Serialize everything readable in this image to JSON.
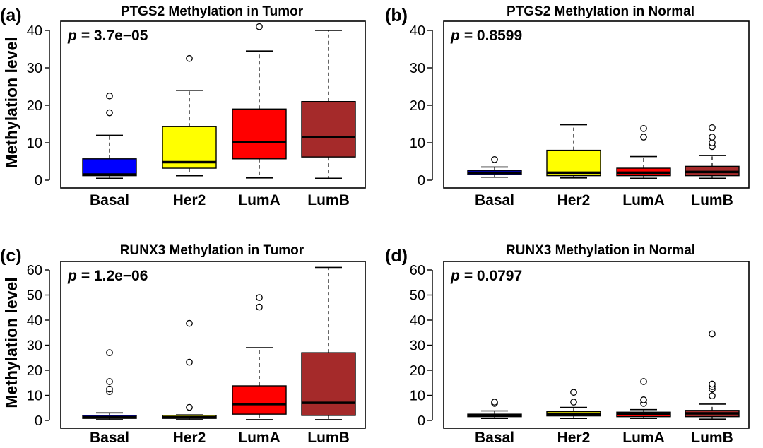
{
  "figure": {
    "ylabel": "Methylation level"
  },
  "chart_data": [
    {
      "type": "boxplot",
      "panel_label": "(a)",
      "title": "PTGS2 Methylation in Tumor",
      "p_symbol": "p",
      "p_value": "= 3.7e−05",
      "ylabel": "Methylation level",
      "ylim": [
        0,
        40
      ],
      "yticks": [
        "0",
        "10",
        "20",
        "30",
        "40"
      ],
      "categories": [
        "Basal",
        "Her2",
        "LumA",
        "LumB"
      ],
      "colors": [
        "#0000ff",
        "#ffff00",
        "#ff0000",
        "#a52a2a"
      ],
      "boxes": [
        {
          "q1": 1.2,
          "median": 1.5,
          "q3": 5.7,
          "whisker_low": 0.5,
          "whisker_high": 12,
          "outliers": [
            18,
            22.5
          ]
        },
        {
          "q1": 3.2,
          "median": 4.8,
          "q3": 14.3,
          "whisker_low": 1.2,
          "whisker_high": 24,
          "outliers": [
            32.5
          ]
        },
        {
          "q1": 5.7,
          "median": 10.2,
          "q3": 19,
          "whisker_low": 0.6,
          "whisker_high": 34.5,
          "outliers": [
            41
          ]
        },
        {
          "q1": 6.2,
          "median": 11.5,
          "q3": 21,
          "whisker_low": 0.5,
          "whisker_high": 40,
          "outliers": []
        }
      ]
    },
    {
      "type": "boxplot",
      "panel_label": "(b)",
      "title": "PTGS2 Methylation in Normal",
      "p_symbol": "p",
      "p_value": "= 0.8599",
      "ylabel": "",
      "ylim": [
        0,
        40
      ],
      "yticks": [
        "0",
        "10",
        "20",
        "30",
        "40"
      ],
      "categories": [
        "Basal",
        "Her2",
        "LumA",
        "LumB"
      ],
      "colors": [
        "#0000ff",
        "#ffff00",
        "#ff0000",
        "#a52a2a"
      ],
      "boxes": [
        {
          "q1": 1.5,
          "median": 2.0,
          "q3": 2.6,
          "whisker_low": 0.8,
          "whisker_high": 3.5,
          "outliers": [
            5.5
          ]
        },
        {
          "q1": 1.2,
          "median": 2.0,
          "q3": 8.0,
          "whisker_low": 0.6,
          "whisker_high": 14.8,
          "outliers": []
        },
        {
          "q1": 1.2,
          "median": 2.0,
          "q3": 3.2,
          "whisker_low": 0.5,
          "whisker_high": 6.3,
          "outliers": [
            11.5,
            13.8
          ]
        },
        {
          "q1": 1.2,
          "median": 2.2,
          "q3": 3.7,
          "whisker_low": 0.5,
          "whisker_high": 6.6,
          "outliers": [
            9,
            10,
            11.5,
            14
          ]
        }
      ]
    },
    {
      "type": "boxplot",
      "panel_label": "(c)",
      "title": "RUNX3 Methylation in Tumor",
      "p_symbol": "p",
      "p_value": "= 1.2e−06",
      "ylabel": "Methylation level",
      "ylim": [
        0,
        60
      ],
      "yticks": [
        "0",
        "10",
        "20",
        "30",
        "40",
        "50",
        "60"
      ],
      "categories": [
        "Basal",
        "Her2",
        "LumA",
        "LumB"
      ],
      "colors": [
        "#0000ff",
        "#ffff00",
        "#ff0000",
        "#a52a2a"
      ],
      "boxes": [
        {
          "q1": 0.8,
          "median": 1.2,
          "q3": 2.0,
          "whisker_low": 0.3,
          "whisker_high": 3.0,
          "outliers": [
            11.5,
            12.5,
            15.5,
            27
          ]
        },
        {
          "q1": 0.8,
          "median": 1.2,
          "q3": 2.0,
          "whisker_low": 0.3,
          "whisker_high": 2.2,
          "outliers": [
            5.2,
            23.2,
            38.7
          ]
        },
        {
          "q1": 2.5,
          "median": 6.5,
          "q3": 13.8,
          "whisker_low": 0.3,
          "whisker_high": 29,
          "outliers": [
            45.2,
            49
          ]
        },
        {
          "q1": 2.0,
          "median": 7.0,
          "q3": 27,
          "whisker_low": 0.3,
          "whisker_high": 61,
          "outliers": []
        }
      ]
    },
    {
      "type": "boxplot",
      "panel_label": "(d)",
      "title": "RUNX3 Methylation in Normal",
      "p_symbol": "p",
      "p_value": "= 0.0797",
      "ylabel": "",
      "ylim": [
        0,
        60
      ],
      "yticks": [
        "0",
        "10",
        "20",
        "30",
        "40",
        "50",
        "60"
      ],
      "categories": [
        "Basal",
        "Her2",
        "LumA",
        "LumB"
      ],
      "colors": [
        "#0000ff",
        "#ffff00",
        "#ff0000",
        "#a52a2a"
      ],
      "boxes": [
        {
          "q1": 1.5,
          "median": 2.0,
          "q3": 2.5,
          "whisker_low": 0.8,
          "whisker_high": 3.8,
          "outliers": [
            6.8,
            7.3
          ]
        },
        {
          "q1": 1.8,
          "median": 2.5,
          "q3": 3.5,
          "whisker_low": 0.8,
          "whisker_high": 5.2,
          "outliers": [
            7.3,
            11.2
          ]
        },
        {
          "q1": 1.5,
          "median": 2.5,
          "q3": 3.3,
          "whisker_low": 0.8,
          "whisker_high": 4.3,
          "outliers": [
            6.8,
            8.2,
            15.5
          ]
        },
        {
          "q1": 1.5,
          "median": 2.8,
          "q3": 4.0,
          "whisker_low": 0.5,
          "whisker_high": 6.5,
          "outliers": [
            9.8,
            12.5,
            13.5,
            14.5,
            34.5
          ]
        }
      ]
    }
  ]
}
